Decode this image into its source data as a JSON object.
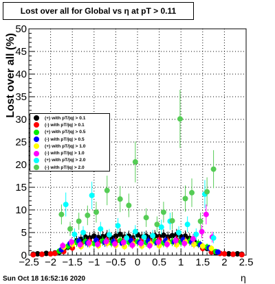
{
  "title": "Lost over all for Global vs   η at pT > 0.11",
  "x_axis_label": "η",
  "y_axis_label": "Lost over all (%)",
  "timestamp": "Sun Oct 18 16:52:16 2020",
  "chart_data": {
    "type": "scatter",
    "title": "Lost over all for Global vs   η at pT > 0.11",
    "xlabel": "η",
    "ylabel": "Lost over all (%)",
    "xlim": [
      -2.5,
      2.5
    ],
    "ylim": [
      0,
      50
    ],
    "x_ticks": [
      -2.5,
      -2,
      -1.5,
      -1,
      -0.5,
      0,
      0.5,
      1,
      1.5,
      2,
      2.5
    ],
    "x_tick_labels": [
      "−2.5",
      "−2",
      "−1.5",
      "−1",
      "−0.5",
      "0",
      "0.5",
      "1",
      "1.5",
      "2",
      "2.5"
    ],
    "y_ticks": [
      0,
      5,
      10,
      15,
      20,
      25,
      30,
      35,
      40,
      45,
      50
    ],
    "y_tick_labels": [
      "0",
      "5",
      "10",
      "15",
      "20",
      "25",
      "30",
      "35",
      "40",
      "45",
      "50"
    ],
    "grid": true,
    "legend_position": "left",
    "series": [
      {
        "name": "(+) with pT/|q| > 0.1",
        "color": "#000000",
        "points": [
          [
            -2.4,
            0.2
          ],
          [
            -2.3,
            0.3
          ],
          [
            -2.2,
            0.2
          ],
          [
            -2.1,
            0.4
          ],
          [
            -1.9,
            0.5
          ],
          [
            -1.8,
            0.7
          ],
          [
            -1.7,
            1.2
          ],
          [
            -1.6,
            1.8
          ],
          [
            -1.5,
            2.5
          ],
          [
            -1.4,
            3.2
          ],
          [
            -1.3,
            3.5
          ],
          [
            -1.2,
            4.0
          ],
          [
            -1.1,
            3.8
          ],
          [
            -1.0,
            4.2
          ],
          [
            -0.9,
            3.9
          ],
          [
            -0.8,
            4.1
          ],
          [
            -0.7,
            4.3
          ],
          [
            -0.6,
            3.8
          ],
          [
            -0.5,
            4.2
          ],
          [
            -0.4,
            4.6
          ],
          [
            -0.3,
            4.0
          ],
          [
            -0.2,
            4.2
          ],
          [
            -0.1,
            3.8
          ],
          [
            0.0,
            4.5
          ],
          [
            0.1,
            4.0
          ],
          [
            0.2,
            4.2
          ],
          [
            0.3,
            3.9
          ],
          [
            0.4,
            4.3
          ],
          [
            0.5,
            4.1
          ],
          [
            0.6,
            4.4
          ],
          [
            0.7,
            4.0
          ],
          [
            0.8,
            4.3
          ],
          [
            0.9,
            4.5
          ],
          [
            1.0,
            4.1
          ],
          [
            1.1,
            4.2
          ],
          [
            1.2,
            3.7
          ],
          [
            1.3,
            3.2
          ],
          [
            1.4,
            2.5
          ],
          [
            1.5,
            1.9
          ],
          [
            1.6,
            1.5
          ],
          [
            1.7,
            1.0
          ],
          [
            1.8,
            0.6
          ],
          [
            1.9,
            0.4
          ],
          [
            2.1,
            0.3
          ],
          [
            2.2,
            0.2
          ],
          [
            2.3,
            0.3
          ],
          [
            2.4,
            0.2
          ]
        ]
      },
      {
        "name": "(-) with pT/|q| > 0.1",
        "color": "#ff0000",
        "points": [
          [
            -2.4,
            0.1
          ],
          [
            -2.2,
            0.2
          ],
          [
            -2.0,
            0.3
          ],
          [
            -1.9,
            0.4
          ],
          [
            -1.7,
            0.8
          ],
          [
            -1.5,
            1.6
          ],
          [
            -1.3,
            2.5
          ],
          [
            -1.1,
            3.0
          ],
          [
            -0.9,
            2.8
          ],
          [
            -0.7,
            3.2
          ],
          [
            -0.5,
            3.0
          ],
          [
            -0.3,
            3.3
          ],
          [
            -0.1,
            3.1
          ],
          [
            0.1,
            3.2
          ],
          [
            0.3,
            3.0
          ],
          [
            0.5,
            3.4
          ],
          [
            0.7,
            3.1
          ],
          [
            0.9,
            3.3
          ],
          [
            1.1,
            3.0
          ],
          [
            1.3,
            2.4
          ],
          [
            1.5,
            1.5
          ],
          [
            1.7,
            0.7
          ],
          [
            1.9,
            0.4
          ],
          [
            2.0,
            0.3
          ],
          [
            2.2,
            0.2
          ],
          [
            2.4,
            0.1
          ]
        ]
      },
      {
        "name": "(+) with pT/|q| > 0.5",
        "color": "#00ee00",
        "points": [
          [
            -1.8,
            0.9
          ],
          [
            -1.6,
            2.0
          ],
          [
            -1.4,
            2.8
          ],
          [
            -1.2,
            3.0
          ],
          [
            -1.0,
            2.6
          ],
          [
            -0.8,
            3.1
          ],
          [
            -0.6,
            2.7
          ],
          [
            -0.4,
            3.2
          ],
          [
            -0.2,
            2.9
          ],
          [
            0.0,
            3.0
          ],
          [
            0.2,
            2.8
          ],
          [
            0.4,
            3.1
          ],
          [
            0.6,
            2.7
          ],
          [
            0.8,
            3.0
          ],
          [
            1.0,
            2.9
          ],
          [
            1.2,
            3.1
          ],
          [
            1.4,
            2.6
          ],
          [
            1.6,
            1.8
          ],
          [
            1.8,
            0.8
          ]
        ]
      },
      {
        "name": "(-) with pT/|q| > 0.5",
        "color": "#0000ff",
        "points": [
          [
            -1.75,
            1.2
          ],
          [
            -1.55,
            2.6
          ],
          [
            -1.35,
            3.1
          ],
          [
            -1.15,
            2.7
          ],
          [
            -0.95,
            3.3
          ],
          [
            -0.75,
            2.8
          ],
          [
            -0.55,
            3.0
          ],
          [
            -0.35,
            2.6
          ],
          [
            -0.15,
            3.2
          ],
          [
            0.05,
            2.8
          ],
          [
            0.25,
            3.1
          ],
          [
            0.45,
            2.7
          ],
          [
            0.65,
            3.2
          ],
          [
            0.85,
            2.9
          ],
          [
            1.05,
            3.4
          ],
          [
            1.25,
            2.9
          ],
          [
            1.45,
            2.3
          ],
          [
            1.65,
            1.6
          ],
          [
            1.85,
            0.7
          ]
        ]
      },
      {
        "name": "(+) with pT/|q| > 1.0",
        "color": "#ffff00",
        "points": [
          [
            -1.7,
            1.8
          ],
          [
            -1.5,
            2.4
          ],
          [
            -1.3,
            1.9
          ],
          [
            -1.1,
            2.5
          ],
          [
            -0.9,
            2.1
          ],
          [
            -0.7,
            2.6
          ],
          [
            -0.5,
            2.2
          ],
          [
            -0.3,
            1.9
          ],
          [
            -0.1,
            2.4
          ],
          [
            0.1,
            2.0
          ],
          [
            0.3,
            2.5
          ],
          [
            0.5,
            2.1
          ],
          [
            0.7,
            2.7
          ],
          [
            0.9,
            2.3
          ],
          [
            1.1,
            2.9
          ],
          [
            1.3,
            2.4
          ],
          [
            1.5,
            2.0
          ],
          [
            1.7,
            1.5
          ]
        ]
      },
      {
        "name": "(-) with pT/|q| > 1.0",
        "color": "#ff00ff",
        "points": [
          [
            -1.72,
            2.1
          ],
          [
            -1.52,
            2.9
          ],
          [
            -1.32,
            2.3
          ],
          [
            -1.12,
            2.7
          ],
          [
            -0.92,
            2.4
          ],
          [
            -0.72,
            3.0
          ],
          [
            -0.52,
            2.5
          ],
          [
            -0.32,
            2.8
          ],
          [
            -0.12,
            2.2
          ],
          [
            0.08,
            2.6
          ],
          [
            0.28,
            2.1
          ],
          [
            0.48,
            2.9
          ],
          [
            0.68,
            2.4
          ],
          [
            0.88,
            3.2
          ],
          [
            1.08,
            2.6
          ],
          [
            1.28,
            3.6
          ],
          [
            1.48,
            5.2
          ],
          [
            1.58,
            9.0
          ],
          [
            1.72,
            4.0
          ]
        ]
      },
      {
        "name": "(+) with pT/|q| > 2.0",
        "color": "#00ffff",
        "points": [
          [
            -1.65,
            11.2
          ],
          [
            -1.45,
            4.6
          ],
          [
            -1.25,
            5.0
          ],
          [
            -1.05,
            13.2
          ],
          [
            -0.85,
            5.8
          ],
          [
            -0.65,
            4.5
          ],
          [
            -0.45,
            6.5
          ],
          [
            -0.25,
            3.8
          ],
          [
            -0.05,
            5.2
          ],
          [
            0.15,
            4.0
          ],
          [
            0.35,
            4.3
          ],
          [
            0.55,
            6.2
          ],
          [
            0.75,
            7.5
          ],
          [
            0.95,
            5.0
          ],
          [
            1.15,
            6.8
          ],
          [
            1.35,
            4.6
          ],
          [
            1.55,
            13.5
          ],
          [
            1.75,
            3.8
          ]
        ]
      },
      {
        "name": "(-) with pT/|q| > 2.0",
        "color": "#55cc55",
        "points": [
          [
            -1.75,
            9.0
          ],
          [
            -1.55,
            5.8
          ],
          [
            -1.35,
            7.5
          ],
          [
            -1.15,
            8.8
          ],
          [
            -0.95,
            9.5
          ],
          [
            -0.7,
            14.3
          ],
          [
            -0.4,
            12.4
          ],
          [
            -0.2,
            11.0
          ],
          [
            -0.05,
            20.6
          ],
          [
            0.2,
            8.3
          ],
          [
            0.45,
            6.8
          ],
          [
            0.6,
            9.5
          ],
          [
            0.8,
            7.6
          ],
          [
            0.98,
            30.1
          ],
          [
            1.1,
            12.5
          ],
          [
            1.25,
            13.8
          ],
          [
            1.45,
            7.5
          ],
          [
            1.6,
            14.0
          ],
          [
            1.75,
            19.0
          ]
        ]
      }
    ]
  }
}
